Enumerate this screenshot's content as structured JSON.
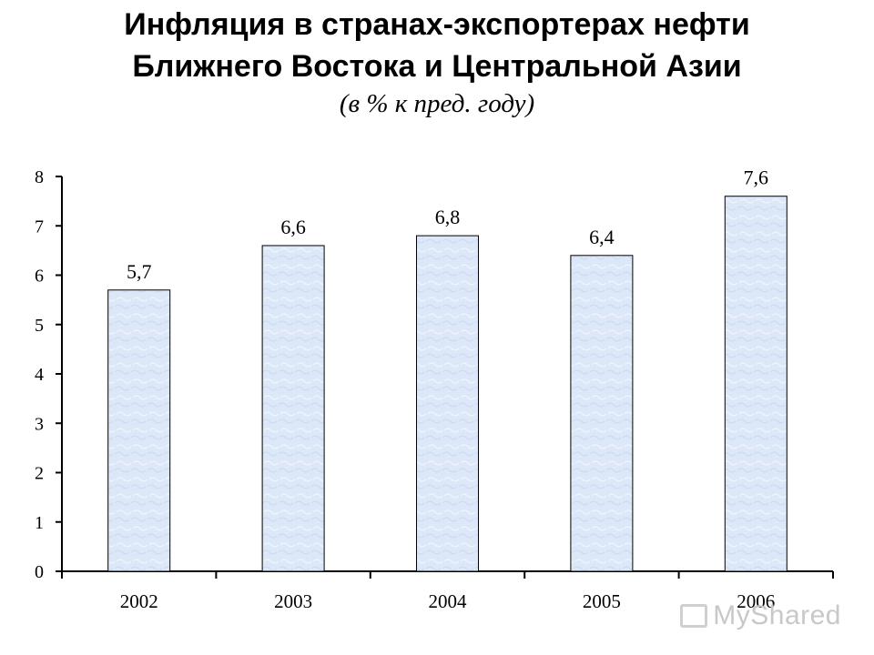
{
  "title": {
    "line1": "Инфляция в странах-экспортерах нефти",
    "line2": "Ближнего Востока и Центральной Азии",
    "subtitle": "(в % к пред. году)"
  },
  "chart_data": {
    "type": "bar",
    "categories": [
      "2002",
      "2003",
      "2004",
      "2005",
      "2006"
    ],
    "values": [
      5.7,
      6.6,
      6.8,
      6.4,
      7.6
    ],
    "data_labels": [
      "5,7",
      "6,6",
      "6,8",
      "6,4",
      "7,6"
    ],
    "ylim": [
      0,
      8
    ],
    "yticks": [
      "0",
      "1",
      "2",
      "3",
      "4",
      "5",
      "6",
      "7",
      "8"
    ],
    "xlabel": "",
    "ylabel": "",
    "grid": false,
    "colors": {
      "bar_fill": "#dde9f8",
      "bar_stroke": "#000000",
      "axis": "#000000"
    }
  },
  "watermark": {
    "text": "MyShared"
  }
}
